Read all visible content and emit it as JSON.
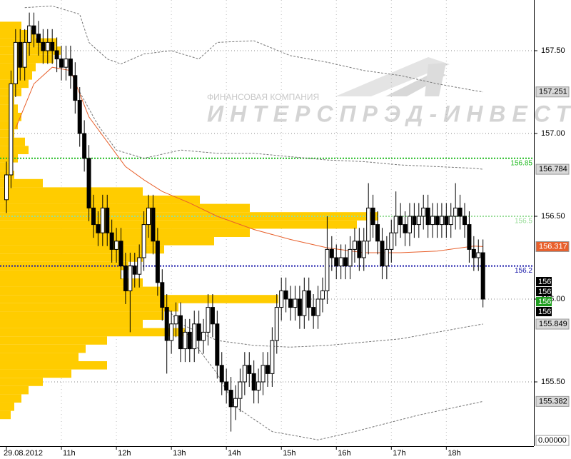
{
  "chart_data": {
    "type": "candlestick",
    "categories": [
      "29.08.2012",
      null,
      null,
      null,
      null,
      null,
      null,
      null,
      null,
      null,
      null,
      null,
      "11h",
      null,
      null,
      null,
      null,
      null,
      null,
      null,
      null,
      null,
      null,
      null,
      "12h",
      null,
      null,
      null,
      null,
      null,
      null,
      null,
      null,
      null,
      null,
      null,
      "13h",
      null,
      null,
      null,
      null,
      null,
      null,
      null,
      null,
      null,
      null,
      null,
      "14h",
      null,
      null,
      null,
      null,
      null,
      null,
      null,
      null,
      null,
      null,
      null,
      "15h",
      null,
      null,
      null,
      null,
      null,
      null,
      null,
      null,
      null,
      null,
      null,
      "16h",
      null,
      null,
      null,
      null,
      null,
      null,
      null,
      null,
      null,
      null,
      null,
      "17h",
      null,
      null,
      null,
      null,
      null,
      null,
      null,
      null,
      null,
      null,
      null,
      "18h",
      null,
      null,
      null,
      null,
      null,
      null,
      null,
      null
    ],
    "open": [
      156.6,
      156.75,
      157.3,
      157.55,
      157.4,
      157.55,
      157.65,
      157.6,
      157.55,
      157.5,
      157.55,
      157.5,
      157.45,
      157.4,
      157.45,
      157.35,
      157.2,
      157.0,
      156.85,
      156.55,
      156.45,
      156.4,
      156.55,
      156.4,
      156.3,
      156.35,
      156.2,
      156.05,
      156.2,
      156.15,
      156.25,
      156.45,
      156.55,
      156.35,
      156.1,
      155.95,
      155.75,
      155.85,
      155.9,
      155.7,
      155.8,
      155.7,
      155.85,
      155.75,
      155.8,
      155.95,
      155.85,
      155.6,
      155.5,
      155.45,
      155.35,
      155.4,
      155.5,
      155.6,
      155.55,
      155.45,
      155.5,
      155.6,
      155.55,
      155.75,
      155.95,
      156.05,
      156.0,
      155.95,
      156.0,
      155.9,
      156.05,
      155.95,
      155.9,
      156.0,
      156.05,
      156.3,
      156.25,
      156.2,
      156.25,
      156.2,
      156.3,
      156.35,
      156.25,
      156.35,
      156.55,
      156.45,
      156.35,
      156.2,
      156.3,
      156.4,
      156.5,
      156.45,
      156.4,
      156.5,
      156.45,
      156.5,
      156.55,
      156.45,
      156.5,
      156.45,
      156.5,
      156.45,
      156.5,
      156.55,
      156.5,
      156.45,
      156.3,
      156.25,
      156.28
    ],
    "high": [
      156.83,
      157.38,
      157.63,
      157.63,
      157.63,
      157.73,
      157.73,
      157.68,
      157.63,
      157.63,
      157.63,
      157.58,
      157.53,
      157.53,
      157.53,
      157.43,
      157.28,
      157.08,
      156.93,
      156.63,
      156.53,
      156.63,
      156.63,
      156.48,
      156.43,
      156.43,
      156.28,
      156.28,
      156.28,
      156.33,
      156.53,
      156.63,
      156.63,
      156.43,
      156.18,
      156.03,
      155.93,
      155.98,
      155.98,
      155.88,
      155.88,
      155.93,
      155.93,
      155.88,
      156.03,
      156.03,
      155.93,
      155.68,
      155.58,
      155.53,
      155.48,
      155.58,
      155.68,
      155.68,
      155.63,
      155.58,
      155.68,
      155.68,
      155.83,
      156.03,
      156.13,
      156.13,
      156.08,
      156.08,
      156.08,
      156.13,
      156.13,
      156.03,
      156.08,
      156.13,
      156.5,
      156.38,
      156.33,
      156.33,
      156.33,
      156.38,
      156.43,
      156.43,
      156.43,
      156.7,
      156.63,
      156.53,
      156.43,
      156.38,
      156.48,
      156.65,
      156.58,
      156.53,
      156.58,
      156.58,
      156.58,
      156.63,
      156.63,
      156.58,
      156.58,
      156.58,
      156.58,
      156.58,
      156.7,
      156.63,
      156.58,
      156.53,
      156.38,
      156.36,
      156.36
    ],
    "low": [
      156.52,
      156.67,
      157.22,
      157.32,
      157.32,
      157.47,
      157.52,
      157.47,
      157.42,
      157.42,
      157.42,
      157.37,
      157.32,
      157.32,
      157.27,
      157.12,
      156.92,
      156.77,
      156.47,
      156.37,
      156.32,
      156.32,
      156.32,
      156.22,
      156.22,
      156.12,
      155.97,
      155.8,
      156.07,
      156.07,
      156.17,
      156.37,
      156.27,
      156.02,
      155.87,
      155.55,
      155.67,
      155.77,
      155.62,
      155.62,
      155.62,
      155.62,
      155.67,
      155.67,
      155.72,
      155.77,
      155.52,
      155.42,
      155.37,
      155.2,
      155.27,
      155.32,
      155.42,
      155.47,
      155.37,
      155.37,
      155.42,
      155.47,
      155.47,
      155.67,
      155.87,
      155.92,
      155.87,
      155.87,
      155.82,
      155.82,
      155.87,
      155.82,
      155.82,
      155.92,
      155.97,
      156.17,
      156.12,
      156.12,
      156.12,
      156.12,
      156.22,
      156.17,
      156.17,
      156.27,
      156.37,
      156.27,
      156.12,
      156.12,
      156.22,
      156.32,
      156.37,
      156.32,
      156.32,
      156.37,
      156.37,
      156.42,
      156.37,
      156.37,
      156.37,
      156.37,
      156.37,
      156.37,
      156.42,
      156.42,
      156.37,
      156.22,
      156.17,
      156.17,
      155.95
    ],
    "close": [
      156.75,
      157.3,
      157.55,
      157.4,
      157.55,
      157.65,
      157.6,
      157.55,
      157.5,
      157.55,
      157.5,
      157.45,
      157.4,
      157.45,
      157.35,
      157.2,
      157.0,
      156.85,
      156.55,
      156.45,
      156.4,
      156.55,
      156.4,
      156.3,
      156.35,
      156.2,
      156.05,
      156.2,
      156.15,
      156.25,
      156.45,
      156.55,
      156.35,
      156.1,
      155.95,
      155.75,
      155.85,
      155.9,
      155.7,
      155.8,
      155.7,
      155.85,
      155.75,
      155.8,
      155.95,
      155.85,
      155.6,
      155.5,
      155.45,
      155.35,
      155.4,
      155.5,
      155.6,
      155.55,
      155.45,
      155.5,
      155.6,
      155.55,
      155.75,
      155.95,
      156.05,
      156.0,
      155.95,
      156.0,
      155.9,
      156.05,
      155.95,
      155.9,
      156.0,
      156.05,
      156.3,
      156.25,
      156.2,
      156.25,
      156.2,
      156.3,
      156.35,
      156.25,
      156.35,
      156.55,
      156.45,
      156.35,
      156.2,
      156.3,
      156.4,
      156.5,
      156.45,
      156.4,
      156.5,
      156.45,
      156.5,
      156.55,
      156.45,
      156.5,
      156.45,
      156.5,
      156.45,
      156.5,
      156.55,
      156.5,
      156.45,
      156.3,
      156.25,
      156.28,
      156.0
    ],
    "up_color": "#ffffff",
    "down_color": "#000000",
    "ylim": [
      155.112,
      157.806
    ],
    "yticks": [
      {
        "value": 157.5,
        "label": "157.50"
      },
      {
        "value": 157.0,
        "label": "157.00"
      },
      {
        "value": 156.5,
        "label": "156.50"
      },
      {
        "value": 156.0,
        "label": "156.00"
      },
      {
        "value": 155.5,
        "label": "155.50"
      }
    ],
    "grid": true,
    "volume_profile": {
      "color": "#ffcc00",
      "prices": [
        157.65,
        157.6,
        157.55,
        157.5,
        157.45,
        157.4,
        157.35,
        157.3,
        157.25,
        157.2,
        157.15,
        157.1,
        157.05,
        157.0,
        156.95,
        156.9,
        156.85,
        156.8,
        156.75,
        156.7,
        156.65,
        156.6,
        156.55,
        156.5,
        156.45,
        156.4,
        156.35,
        156.3,
        156.25,
        156.2,
        156.15,
        156.1,
        156.05,
        156.0,
        155.95,
        155.9,
        155.85,
        155.8,
        155.75,
        155.7,
        155.65,
        155.6,
        155.55,
        155.5,
        155.45,
        155.4,
        155.35,
        155.3
      ],
      "values": [
        30,
        50,
        80,
        85,
        75,
        50,
        45,
        40,
        30,
        20,
        25,
        30,
        25,
        20,
        35,
        40,
        25,
        15,
        20,
        60,
        200,
        280,
        350,
        530,
        500,
        350,
        300,
        230,
        200,
        180,
        170,
        200,
        230,
        390,
        250,
        230,
        200,
        260,
        150,
        120,
        110,
        150,
        100,
        60,
        40,
        30,
        20,
        15
      ]
    },
    "overlays": [
      {
        "color": "#e8602c",
        "dash": false,
        "x": [
          2,
          6,
          10,
          14,
          18,
          22,
          26,
          30,
          34,
          40,
          46,
          54,
          62,
          70,
          78,
          86,
          94,
          102,
          104
        ],
        "values": [
          157.03,
          157.3,
          157.4,
          157.38,
          157.1,
          156.95,
          156.8,
          156.72,
          156.65,
          156.58,
          156.5,
          156.42,
          156.36,
          156.31,
          156.28,
          156.28,
          156.29,
          156.32,
          156.317
        ]
      },
      {
        "color": "#777777",
        "dash": true,
        "x": [
          4,
          10,
          16,
          18,
          22,
          25,
          30,
          36,
          42,
          46,
          54,
          62,
          70,
          78,
          86,
          94,
          102,
          104
        ],
        "values": [
          157.76,
          157.77,
          157.72,
          157.55,
          157.45,
          157.42,
          157.48,
          157.5,
          157.45,
          157.55,
          157.56,
          157.47,
          157.43,
          157.38,
          157.35,
          157.3,
          157.26,
          157.251
        ]
      },
      {
        "color": "#777777",
        "dash": true,
        "x": [
          16,
          20,
          24,
          30,
          38,
          46,
          54,
          62,
          70,
          78,
          86,
          94,
          102,
          104
        ],
        "values": [
          157.25,
          157.05,
          156.9,
          156.85,
          156.9,
          156.88,
          156.88,
          156.86,
          156.84,
          156.83,
          156.81,
          156.8,
          156.79,
          156.784
        ]
      },
      {
        "color": "#777777",
        "dash": true,
        "x": [
          38,
          46,
          54,
          62,
          70,
          78,
          86,
          94,
          102,
          104
        ],
        "values": [
          155.85,
          155.75,
          155.72,
          155.71,
          155.72,
          155.74,
          155.76,
          155.8,
          155.84,
          155.849
        ]
      },
      {
        "color": "#777777",
        "dash": true,
        "x": [
          35,
          46,
          50,
          58,
          68,
          76,
          90,
          104
        ],
        "values": [
          155.95,
          155.55,
          155.35,
          155.2,
          155.15,
          155.2,
          155.3,
          155.382
        ]
      }
    ],
    "levels": [
      {
        "value": 156.85,
        "label": "156.85",
        "color": "#22bb22"
      },
      {
        "value": 156.5,
        "label": "156.5",
        "color": "#99dd99"
      },
      {
        "value": 156.2,
        "label": "156.2",
        "color": "#1a1aaa"
      }
    ],
    "price_boxes": [
      {
        "value": 157.251,
        "color": "#d8d8d8",
        "text_color": "#000000"
      },
      {
        "value": 156.784,
        "color": "#d8d8d8",
        "text_color": "#000000"
      },
      {
        "value": 156.317,
        "color": "#e8602c",
        "text_color": "#ffffff"
      },
      {
        "value": 155.849,
        "color": "#d8d8d8",
        "text_color": "#000000"
      },
      {
        "value": 155.382,
        "color": "#d8d8d8",
        "text_color": "#000000"
      }
    ],
    "last_boxes": [
      {
        "label": "156",
        "color": "#000000"
      },
      {
        "label": "156",
        "color": "#000000"
      },
      {
        "label": "156",
        "color": "#1f9e1f"
      },
      {
        "label": "156",
        "color": "#000000"
      }
    ],
    "indicator_box": "0.00000",
    "watermark": {
      "company": "ФИНАНСОВАЯ КОМПАНИЯ",
      "name": "ИНТЕРСПРЭД-ИНВЕСТ"
    }
  }
}
